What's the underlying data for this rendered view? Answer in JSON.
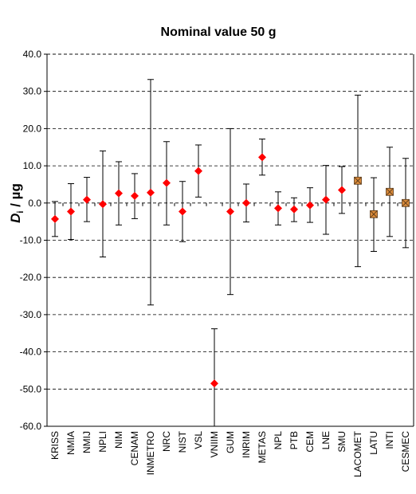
{
  "chart_data": {
    "type": "scatter",
    "title": "Nominal value 50 g",
    "ylabel_main": "D",
    "ylabel_sub": "i",
    "ylabel_unit": " / µg",
    "xlabel": "",
    "ylim": [
      -60,
      40
    ],
    "yticks": [
      40,
      30,
      20,
      10,
      0,
      -10,
      -20,
      -30,
      -40,
      -50,
      -60
    ],
    "ytick_labels": [
      "40.0",
      "30.0",
      "20.0",
      "10.0",
      "0.0",
      "-10.0",
      "-20.0",
      "-30.0",
      "-40.0",
      "-50.0",
      "-60.0"
    ],
    "grid": "horizontal-dashed",
    "categories": [
      "KRISS",
      "NMIA",
      "NMIJ",
      "NPLI",
      "NIM",
      "CENAM",
      "INMETRO",
      "NRC",
      "NIST",
      "VSL",
      "VNIIM",
      "GUM",
      "INRIM",
      "METAS",
      "NPL",
      "PTB",
      "CEM",
      "LNE",
      "SMU",
      "LACOMET",
      "LATU",
      "INTI",
      "CESMEC"
    ],
    "values": [
      -4.3,
      -2.3,
      0.9,
      -0.3,
      2.6,
      1.9,
      2.8,
      5.4,
      -2.3,
      8.6,
      -48.5,
      -2.3,
      0.0,
      12.3,
      -1.4,
      -1.7,
      -0.6,
      0.9,
      3.5,
      6.0,
      -3.0,
      3.0,
      0.0
    ],
    "err_upper": [
      0.4,
      5.2,
      6.9,
      14.0,
      11.1,
      7.9,
      33.2,
      16.5,
      5.8,
      15.6,
      -33.8,
      20.0,
      5.1,
      17.2,
      3.0,
      1.4,
      4.1,
      10.1,
      9.8,
      29.0,
      6.8,
      15.0,
      12.0
    ],
    "err_lower": [
      -9.0,
      -9.8,
      -5.0,
      -14.5,
      -5.9,
      -4.2,
      -27.4,
      -5.9,
      -10.4,
      1.6,
      -60.0,
      -24.6,
      -5.1,
      7.5,
      -5.9,
      -5.0,
      -5.2,
      -8.4,
      -2.8,
      -17.1,
      -13.0,
      -9.0,
      -12.0
    ],
    "marker_types": [
      "diamond",
      "diamond",
      "diamond",
      "diamond",
      "diamond",
      "diamond",
      "diamond",
      "diamond",
      "diamond",
      "diamond",
      "diamond",
      "diamond",
      "diamond",
      "diamond",
      "diamond",
      "diamond",
      "diamond",
      "diamond",
      "diamond",
      "square-x",
      "square-x",
      "square-x",
      "square-x"
    ],
    "colors": {
      "diamond": "#ff0000",
      "square_fill": "#d98a3a",
      "square_stroke": "#5a3a1a",
      "error_bar": "#000000",
      "grid": "#000000"
    }
  }
}
